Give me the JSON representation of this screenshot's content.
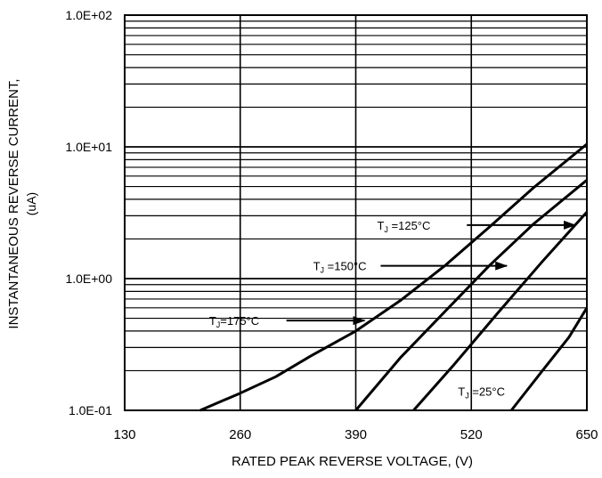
{
  "chart_data": {
    "type": "line",
    "xlabel": "RATED PEAK REVERSE VOLTAGE, (V)",
    "ylabel_line1": "INSTANTANEOUS REVERSE CURRENT,",
    "ylabel_line2": "(uA)",
    "x_ticks": [
      130,
      260,
      390,
      520,
      650
    ],
    "x_tick_labels": [
      "130",
      "260",
      "390",
      "520",
      "650"
    ],
    "xlim": [
      130,
      650
    ],
    "y_scale": "log",
    "ylim": [
      0.1,
      100
    ],
    "y_ticks": [
      0.1,
      1,
      10,
      100
    ],
    "y_tick_labels": [
      "1.0E-01",
      "1.0E+00",
      "1.0E+01",
      "1.0E+02"
    ],
    "grid": true,
    "series": [
      {
        "name": "TJ=175°C",
        "x": [
          215,
          260,
          300,
          340,
          390,
          440,
          490,
          540,
          590,
          650
        ],
        "y": [
          0.1,
          0.135,
          0.18,
          0.26,
          0.4,
          0.68,
          1.25,
          2.45,
          4.9,
          10.5
        ]
      },
      {
        "name": "TJ=150°C",
        "x": [
          390,
          440,
          490,
          540,
          590,
          650
        ],
        "y": [
          0.1,
          0.25,
          0.56,
          1.25,
          2.6,
          5.6
        ]
      },
      {
        "name": "TJ=125°C",
        "x": [
          455,
          500,
          550,
          600,
          650
        ],
        "y": [
          0.1,
          0.22,
          0.55,
          1.35,
          3.2
        ]
      },
      {
        "name": "TJ=25°C",
        "x": [
          565,
          600,
          630,
          650
        ],
        "y": [
          0.1,
          0.2,
          0.36,
          0.6
        ]
      }
    ],
    "annotations": [
      {
        "label_main": "T",
        "label_sub": "J",
        "label_rest": " =125°C",
        "series": "TJ=125°C",
        "text_x": 414,
        "text_y": 2.55,
        "arrow_from_x": 515,
        "arrow_to_x": 637
      },
      {
        "label_main": "T",
        "label_sub": "J",
        "label_rest": " =150°C",
        "series": "TJ=150°C",
        "text_x": 342,
        "text_y": 1.25,
        "arrow_from_x": 418,
        "arrow_to_x": 560
      },
      {
        "label_main": "T",
        "label_sub": "J",
        "label_rest": "=175°C",
        "series": "TJ=175°C",
        "text_x": 225,
        "text_y": 0.48,
        "arrow_from_x": 312,
        "arrow_to_x": 400
      },
      {
        "label_main": "T",
        "label_sub": "J",
        "label_rest": " =25°C",
        "series": "TJ=25°C",
        "text_x": 505,
        "text_y": 0.14,
        "arrow_from_x": null,
        "arrow_to_x": null
      }
    ]
  }
}
